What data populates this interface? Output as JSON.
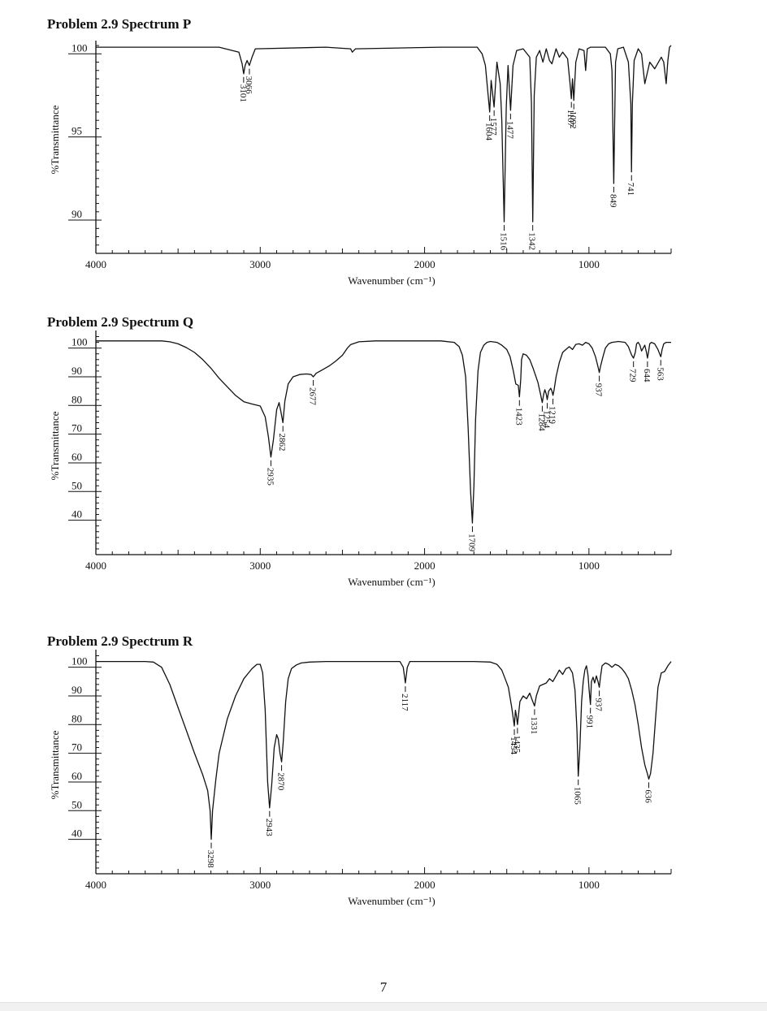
{
  "page": {
    "page_number": "7"
  },
  "chart_data": [
    {
      "type": "line",
      "title": "Problem 2.9 Spectrum P",
      "xlabel": "Wavenumber (cm⁻¹)",
      "ylabel": "%Transmittance",
      "xlim": [
        4000,
        500
      ],
      "ylim": [
        88,
        100.6
      ],
      "xticks": [
        4000,
        3000,
        2000,
        1000
      ],
      "xtick_labels": [
        "4000",
        "3000",
        "2000",
        "1000"
      ],
      "yticks": [
        90,
        95,
        100
      ],
      "ytick_labels": [
        "90",
        "95",
        "100"
      ],
      "series": [
        {
          "color": "#111111",
          "x": [
            4000,
            3250,
            3130,
            3110,
            3101,
            3092,
            3080,
            3066,
            3050,
            3030,
            2600,
            2450,
            2440,
            2420,
            1900,
            1680,
            1650,
            1630,
            1604,
            1595,
            1577,
            1560,
            1540,
            1530,
            1516,
            1503,
            1492,
            1477,
            1462,
            1440,
            1400,
            1360,
            1350,
            1342,
            1333,
            1320,
            1300,
            1280,
            1260,
            1240,
            1225,
            1200,
            1180,
            1160,
            1130,
            1115,
            1107,
            1100,
            1092,
            1080,
            1060,
            1030,
            1020,
            1010,
            990,
            900,
            870,
            860,
            849,
            838,
            825,
            790,
            760,
            745,
            741,
            736,
            725,
            700,
            680,
            660,
            630,
            600,
            560,
            545,
            530,
            520,
            510,
            500
          ],
          "y": [
            100.4,
            100.4,
            100.1,
            99.4,
            98.8,
            99.3,
            99.6,
            99.3,
            99.8,
            100.3,
            100.4,
            100.3,
            100.1,
            100.3,
            100.4,
            100.4,
            100.0,
            99.3,
            96.5,
            98.4,
            96.8,
            99.5,
            98.2,
            96.0,
            89.9,
            96.8,
            99.3,
            96.6,
            99.3,
            100.2,
            100.3,
            99.8,
            97.0,
            89.9,
            97.5,
            99.8,
            100.2,
            99.5,
            100.3,
            99.6,
            99.4,
            100.3,
            99.8,
            100.1,
            99.7,
            98.2,
            97.3,
            98.5,
            97.2,
            99.5,
            100.3,
            100.2,
            99.0,
            100.3,
            100.4,
            100.4,
            100.0,
            99.0,
            92.2,
            99.5,
            100.3,
            100.4,
            99.5,
            97.0,
            92.9,
            97.0,
            99.6,
            100.3,
            100.0,
            98.2,
            99.5,
            99.1,
            99.8,
            99.5,
            98.2,
            99.6,
            100.4,
            100.5
          ]
        }
      ],
      "peak_labels": [
        "3101",
        "3066",
        "1604",
        "1577",
        "1516",
        "1477",
        "1342",
        "1107",
        "1092",
        "849",
        "741"
      ]
    },
    {
      "type": "line",
      "title": "Problem 2.9 Spectrum Q",
      "xlabel": "Wavenumber (cm⁻¹)",
      "ylabel": "%Transmittance",
      "xlim": [
        4000,
        500
      ],
      "ylim": [
        28,
        105
      ],
      "xticks": [
        4000,
        3000,
        2000,
        1000
      ],
      "xtick_labels": [
        "4000",
        "3000",
        "2000",
        "1000"
      ],
      "yticks": [
        40,
        50,
        60,
        70,
        80,
        90,
        100
      ],
      "ytick_labels": [
        "40",
        "50",
        "60",
        "70",
        "80",
        "90",
        "100"
      ],
      "series": [
        {
          "color": "#111111",
          "x": [
            4000,
            3600,
            3550,
            3500,
            3450,
            3400,
            3350,
            3300,
            3250,
            3200,
            3150,
            3100,
            3050,
            3000,
            2970,
            2950,
            2935,
            2920,
            2900,
            2885,
            2875,
            2862,
            2850,
            2830,
            2800,
            2760,
            2720,
            2690,
            2677,
            2660,
            2620,
            2580,
            2540,
            2500,
            2470,
            2450,
            2400,
            2300,
            1900,
            1820,
            1790,
            1770,
            1750,
            1735,
            1720,
            1709,
            1700,
            1690,
            1675,
            1660,
            1640,
            1620,
            1600,
            1560,
            1530,
            1500,
            1480,
            1460,
            1445,
            1430,
            1423,
            1415,
            1410,
            1400,
            1380,
            1360,
            1340,
            1310,
            1295,
            1284,
            1275,
            1268,
            1260,
            1254,
            1245,
            1232,
            1225,
            1219,
            1212,
            1200,
            1180,
            1160,
            1140,
            1120,
            1100,
            1080,
            1060,
            1040,
            1020,
            1000,
            980,
            960,
            945,
            937,
            930,
            915,
            900,
            880,
            860,
            820,
            780,
            760,
            750,
            740,
            729,
            718,
            710,
            700,
            690,
            680,
            660,
            650,
            644,
            638,
            630,
            620,
            600,
            580,
            570,
            563,
            555,
            545,
            530,
            515,
            500
          ],
          "y": [
            102.5,
            102.5,
            102.2,
            101.5,
            100.2,
            98.5,
            96.0,
            93.0,
            89.5,
            86.5,
            83.5,
            81.3,
            80.5,
            79.8,
            76.0,
            69.0,
            62.0,
            68.0,
            78.5,
            81.0,
            78.0,
            74.0,
            81.5,
            87.5,
            90.0,
            90.8,
            91.0,
            90.8,
            90.0,
            91.2,
            92.5,
            93.8,
            95.5,
            97.5,
            100.0,
            101.2,
            102.2,
            102.5,
            102.5,
            102.0,
            100.5,
            97.5,
            90.0,
            72.0,
            50.0,
            39.0,
            52.0,
            75.0,
            92.0,
            98.5,
            101.0,
            102.0,
            102.3,
            102.0,
            101.0,
            99.5,
            97.0,
            92.0,
            87.5,
            87.0,
            83.0,
            89.0,
            96.0,
            98.0,
            97.5,
            96.0,
            93.0,
            88.0,
            84.0,
            81.0,
            84.0,
            85.5,
            84.0,
            82.0,
            85.0,
            86.0,
            85.0,
            83.5,
            85.5,
            90.0,
            95.0,
            98.5,
            99.5,
            100.5,
            99.5,
            101.3,
            101.5,
            101.0,
            102.0,
            101.5,
            100.0,
            97.0,
            93.5,
            91.5,
            93.5,
            97.0,
            100.0,
            101.5,
            102.0,
            102.3,
            102.0,
            100.5,
            99.0,
            97.5,
            96.5,
            98.5,
            101.5,
            102.0,
            101.0,
            99.0,
            101.0,
            98.5,
            96.5,
            98.5,
            101.5,
            102.0,
            101.5,
            99.5,
            98.0,
            97.0,
            99.5,
            101.5,
            102.0,
            102.0,
            102.0
          ]
        }
      ],
      "peak_labels": [
        "2935",
        "2862",
        "2677",
        "1709",
        "1423",
        "1284",
        "1254",
        "1219",
        "937",
        "729",
        "644",
        "563"
      ]
    },
    {
      "type": "line",
      "title": "Problem 2.9 Spectrum R",
      "xlabel": "Wavenumber (cm⁻¹)",
      "ylabel": "%Transmittance",
      "xlim": [
        4000,
        500
      ],
      "ylim": [
        28,
        105
      ],
      "xticks": [
        4000,
        3000,
        2000,
        1000
      ],
      "xtick_labels": [
        "4000",
        "3000",
        "2000",
        "1000"
      ],
      "yticks": [
        40,
        50,
        60,
        70,
        80,
        90,
        100
      ],
      "ytick_labels": [
        "40",
        "50",
        "60",
        "70",
        "80",
        "90",
        "100"
      ],
      "series": [
        {
          "color": "#111111",
          "x": [
            4000,
            3700,
            3650,
            3600,
            3550,
            3500,
            3450,
            3400,
            3350,
            3320,
            3305,
            3298,
            3290,
            3270,
            3250,
            3200,
            3150,
            3100,
            3050,
            3020,
            3000,
            2985,
            2970,
            2955,
            2943,
            2930,
            2915,
            2900,
            2890,
            2880,
            2870,
            2860,
            2845,
            2830,
            2810,
            2780,
            2750,
            2700,
            2600,
            2300,
            2150,
            2130,
            2117,
            2105,
            2090,
            1900,
            1700,
            1600,
            1560,
            1530,
            1510,
            1490,
            1470,
            1460,
            1454,
            1447,
            1441,
            1435,
            1420,
            1400,
            1380,
            1360,
            1345,
            1331,
            1320,
            1300,
            1280,
            1260,
            1240,
            1220,
            1200,
            1180,
            1160,
            1140,
            1120,
            1100,
            1085,
            1073,
            1065,
            1055,
            1045,
            1035,
            1025,
            1015,
            1005,
            999,
            991,
            985,
            975,
            965,
            955,
            945,
            937,
            930,
            920,
            900,
            880,
            860,
            840,
            820,
            800,
            780,
            760,
            740,
            720,
            700,
            680,
            660,
            645,
            636,
            625,
            610,
            595,
            580,
            560,
            540,
            520,
            500
          ],
          "y": [
            102.0,
            102.0,
            101.8,
            100.0,
            94.0,
            86.0,
            78.0,
            70.0,
            62.5,
            57.0,
            50.0,
            40.0,
            50.0,
            61.0,
            70.0,
            82.0,
            90.0,
            96.0,
            99.5,
            101.0,
            101.0,
            98.0,
            85.0,
            60.0,
            51.0,
            59.0,
            72.0,
            76.5,
            75.0,
            70.0,
            67.0,
            74.0,
            88.0,
            96.0,
            99.5,
            100.8,
            101.5,
            101.8,
            102.0,
            102.0,
            102.0,
            100.0,
            94.5,
            100.0,
            102.0,
            102.0,
            102.0,
            101.8,
            101.0,
            99.0,
            96.0,
            93.0,
            86.0,
            82.0,
            79.5,
            85.0,
            83.0,
            80.0,
            88.0,
            90.0,
            89.0,
            91.0,
            88.5,
            86.5,
            90.0,
            93.5,
            94.0,
            94.5,
            96.0,
            95.0,
            97.0,
            99.0,
            97.5,
            99.5,
            100.0,
            98.0,
            92.0,
            78.0,
            62.0,
            72.0,
            88.0,
            95.0,
            99.0,
            100.5,
            97.0,
            92.0,
            87.0,
            95.0,
            96.5,
            94.5,
            97.0,
            95.0,
            93.0,
            96.5,
            100.5,
            101.5,
            101.0,
            100.0,
            101.0,
            100.5,
            99.5,
            98.0,
            96.0,
            92.0,
            87.0,
            80.0,
            72.0,
            66.0,
            63.0,
            61.0,
            63.0,
            70.0,
            82.0,
            93.0,
            98.0,
            98.5,
            100.5,
            102.0
          ]
        }
      ],
      "peak_labels": [
        "3298",
        "2943",
        "2870",
        "2117",
        "1454",
        "1435",
        "1331",
        "1065",
        "991",
        "937",
        "636"
      ]
    }
  ]
}
